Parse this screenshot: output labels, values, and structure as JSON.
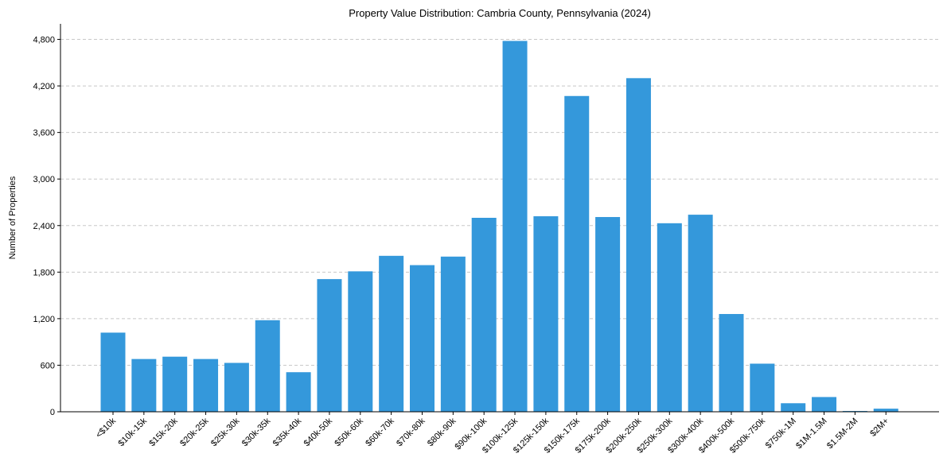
{
  "chart_data": {
    "type": "bar",
    "title": "Property Value Distribution: Cambria County, Pennsylvania (2024)",
    "xlabel": "",
    "ylabel": "Number of Properties",
    "ylim": [
      0,
      5000
    ],
    "yticks": [
      0,
      600,
      1200,
      1800,
      2400,
      3000,
      3600,
      4200,
      4800
    ],
    "ytick_labels": [
      "0",
      "600",
      "1,200",
      "1,800",
      "2,400",
      "3,000",
      "3,600",
      "4,200",
      "4,800"
    ],
    "grid": "y-dashed",
    "bar_color": "#3498db",
    "categories": [
      "<$10k",
      "$10k-15k",
      "$15k-20k",
      "$20k-25k",
      "$25k-30k",
      "$30k-35k",
      "$35k-40k",
      "$40k-50k",
      "$50k-60k",
      "$60k-70k",
      "$70k-80k",
      "$80k-90k",
      "$90k-100k",
      "$100k-125k",
      "$125k-150k",
      "$150k-175k",
      "$175k-200k",
      "$200k-250k",
      "$250k-300k",
      "$300k-400k",
      "$400k-500k",
      "$500k-750k",
      "$750k-1M",
      "$1M-1.5M",
      "$1.5M-2M",
      "$2M+"
    ],
    "values": [
      1020,
      680,
      710,
      680,
      630,
      1180,
      510,
      1710,
      1810,
      2010,
      1890,
      2000,
      2500,
      4780,
      2520,
      4070,
      2510,
      4300,
      2430,
      2540,
      1260,
      620,
      110,
      190,
      10,
      40
    ]
  }
}
